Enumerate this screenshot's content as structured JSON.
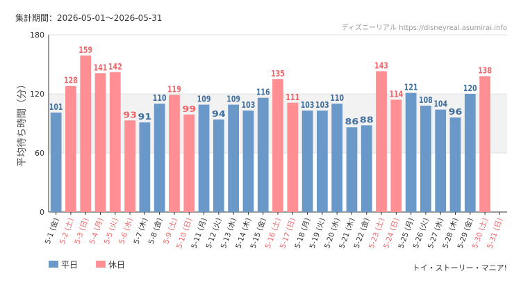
{
  "period_label": "集計期間：2026-05-01～2026-05-31",
  "source_label": "ディズニーリアル https://disneyreal.asumirai.info",
  "footer_label": "トイ・ストーリー・マニア!",
  "colors": {
    "weekday": "#6a98c9",
    "holiday": "#ff8f93",
    "holiday_text": "#f06468",
    "band": "#f2f2f2"
  },
  "chart_data": {
    "type": "bar",
    "ylabel": "平均待ち時間（分）",
    "ylim": [
      0,
      180
    ],
    "yticks": [
      0,
      60,
      120,
      180
    ],
    "band": [
      60,
      120
    ],
    "legend": [
      {
        "key": "weekday",
        "label": "平日"
      },
      {
        "key": "holiday",
        "label": "休日"
      }
    ],
    "categories": [
      "5-1 (金)",
      "5-2 (土)",
      "5-3 (日)",
      "5-4 (月)",
      "5-5 (火)",
      "5-6 (水)",
      "5-7 (木)",
      "5-8 (金)",
      "5-9 (土)",
      "5-10 (日)",
      "5-11 (月)",
      "5-12 (火)",
      "5-13 (水)",
      "5-14 (木)",
      "5-15 (金)",
      "5-16 (土)",
      "5-17 (日)",
      "5-18 (月)",
      "5-19 (火)",
      "5-20 (水)",
      "5-21 (木)",
      "5-22 (金)",
      "5-23 (土)",
      "5-24 (日)",
      "5-25 (月)",
      "5-26 (火)",
      "5-27 (水)",
      "5-28 (木)",
      "5-29 (金)",
      "5-30 (土)",
      "5-31 (日)"
    ],
    "values": [
      101,
      128,
      159,
      141,
      142,
      93,
      91,
      110,
      119,
      99,
      109,
      94,
      109,
      103,
      116,
      135,
      111,
      103,
      103,
      110,
      86,
      88,
      143,
      114,
      121,
      108,
      104,
      96,
      120,
      138,
      null
    ],
    "holiday": [
      false,
      true,
      true,
      true,
      true,
      true,
      false,
      false,
      true,
      true,
      false,
      false,
      false,
      false,
      false,
      true,
      true,
      false,
      false,
      false,
      false,
      false,
      true,
      true,
      false,
      false,
      false,
      false,
      false,
      true,
      true
    ]
  }
}
